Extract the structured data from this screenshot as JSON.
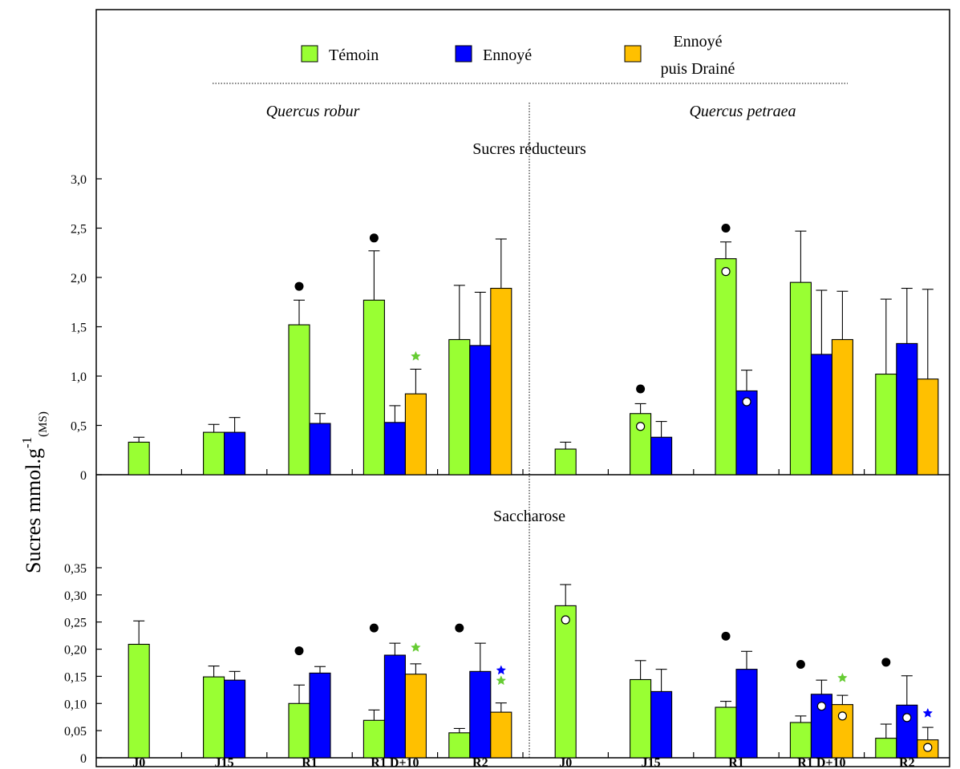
{
  "colors": {
    "temoin": "#99ff33",
    "ennoye": "#0000ff",
    "draine": "#ffc000",
    "axis": "#000000",
    "star_green": "#66cc33",
    "star_blue": "#0000ff"
  },
  "legend": {
    "temoin": "Témoin",
    "ennoye": "Ennoyé",
    "draine_line1": "Ennoyé",
    "draine_line2": "puis Drainé"
  },
  "species": {
    "left": "Quercus robur",
    "right": "Quercus petraea"
  },
  "y_axis_label": {
    "main": "Sucres mmol.g",
    "sup": "-1",
    "sub": "(MS)"
  },
  "chart_data": [
    {
      "type": "bar",
      "title": "Sucres réducteurs",
      "ylim": [
        0,
        3.0
      ],
      "yticks": [
        0,
        0.5,
        1.0,
        1.5,
        2.0,
        2.5,
        3.0
      ],
      "ytick_labels": [
        "0",
        "0,5",
        "1,0",
        "1,5",
        "2,0",
        "2,5",
        "3,0"
      ],
      "categories": [
        "J0",
        "J15",
        "R1",
        "R1 D+10",
        "R2",
        "J0",
        "J15",
        "R1",
        "R1 D+10",
        "R2"
      ],
      "series": [
        {
          "name": "Témoin",
          "values": [
            0.33,
            0.43,
            1.52,
            1.77,
            1.37,
            0.26,
            0.62,
            2.19,
            1.95,
            1.02
          ],
          "errors": [
            0.05,
            0.08,
            0.25,
            0.5,
            0.55,
            0.07,
            0.1,
            0.17,
            0.52,
            0.76
          ]
        },
        {
          "name": "Ennoyé",
          "values": [
            null,
            0.43,
            0.52,
            0.53,
            1.31,
            null,
            0.38,
            0.85,
            1.22,
            1.33
          ],
          "errors": [
            null,
            0.15,
            0.1,
            0.17,
            0.54,
            null,
            0.16,
            0.21,
            0.65,
            0.56
          ]
        },
        {
          "name": "Ennoyé puis Drainé",
          "values": [
            null,
            null,
            null,
            0.82,
            1.89,
            null,
            null,
            null,
            1.37,
            0.97
          ],
          "errors": [
            null,
            null,
            null,
            0.25,
            0.5,
            null,
            null,
            null,
            0.49,
            0.91
          ]
        }
      ],
      "markers": [
        {
          "type": "dot",
          "category": 2,
          "bar": 0,
          "y": 1.91
        },
        {
          "type": "dot",
          "category": 3,
          "bar": 0,
          "y": 2.4
        },
        {
          "type": "star",
          "category": 3,
          "bar": 2,
          "y": 1.2,
          "color": "#66cc33"
        },
        {
          "type": "dot",
          "category": 6,
          "bar": 0,
          "y": 0.87
        },
        {
          "type": "circle",
          "category": 6,
          "bar": 0,
          "y": 0.49
        },
        {
          "type": "dot",
          "category": 7,
          "bar": 0,
          "y": 2.5
        },
        {
          "type": "circle",
          "category": 7,
          "bar": 0,
          "y": 2.06
        },
        {
          "type": "circle",
          "category": 7,
          "bar": 1,
          "y": 0.74
        }
      ]
    },
    {
      "type": "bar",
      "title": "Saccharose",
      "ylim": [
        0,
        0.35
      ],
      "yticks": [
        0,
        0.05,
        0.1,
        0.15,
        0.2,
        0.25,
        0.3,
        0.35
      ],
      "ytick_labels": [
        "0",
        "0,05",
        "0,10",
        "0,15",
        "0,20",
        "0,25",
        "0,30",
        "0,35"
      ],
      "categories": [
        "J0",
        "J15",
        "R1",
        "R1 D+10",
        "R2",
        "J0",
        "J15",
        "R1",
        "R1 D+10",
        "R2"
      ],
      "series": [
        {
          "name": "Témoin",
          "values": [
            0.209,
            0.149,
            0.1,
            0.069,
            0.046,
            0.28,
            0.144,
            0.093,
            0.065,
            0.036
          ],
          "errors": [
            0.043,
            0.02,
            0.034,
            0.019,
            0.008,
            0.039,
            0.035,
            0.011,
            0.012,
            0.026
          ]
        },
        {
          "name": "Ennoyé",
          "values": [
            null,
            0.143,
            0.156,
            0.189,
            0.159,
            null,
            0.122,
            0.163,
            0.117,
            0.097
          ],
          "errors": [
            null,
            0.016,
            0.012,
            0.022,
            0.052,
            null,
            0.041,
            0.033,
            0.026,
            0.054
          ]
        },
        {
          "name": "Ennoyé puis Drainé",
          "values": [
            null,
            null,
            null,
            0.154,
            0.084,
            null,
            null,
            null,
            0.098,
            0.033
          ],
          "errors": [
            null,
            null,
            null,
            0.019,
            0.017,
            null,
            null,
            null,
            0.017,
            0.023
          ]
        }
      ],
      "markers": [
        {
          "type": "dot",
          "category": 2,
          "bar": 0,
          "y": 0.197
        },
        {
          "type": "dot",
          "category": 3,
          "bar": 0,
          "y": 0.239
        },
        {
          "type": "star",
          "category": 3,
          "bar": 2,
          "y": 0.203,
          "color": "#66cc33"
        },
        {
          "type": "dot",
          "category": 4,
          "bar": 0,
          "y": 0.239
        },
        {
          "type": "star",
          "category": 4,
          "bar": 2,
          "y": 0.161,
          "color": "#0000ff"
        },
        {
          "type": "star",
          "category": 4,
          "bar": 2,
          "y": 0.142,
          "color": "#66cc33"
        },
        {
          "type": "circle",
          "category": 5,
          "bar": 0,
          "y": 0.254
        },
        {
          "type": "dot",
          "category": 7,
          "bar": 0,
          "y": 0.224
        },
        {
          "type": "dot",
          "category": 8,
          "bar": 0,
          "y": 0.172
        },
        {
          "type": "star",
          "category": 8,
          "bar": 2,
          "y": 0.147,
          "color": "#66cc33"
        },
        {
          "type": "circle",
          "category": 8,
          "bar": 1,
          "y": 0.095
        },
        {
          "type": "circle",
          "category": 8,
          "bar": 2,
          "y": 0.077
        },
        {
          "type": "dot",
          "category": 9,
          "bar": 0,
          "y": 0.176
        },
        {
          "type": "star",
          "category": 9,
          "bar": 2,
          "y": 0.082,
          "color": "#0000ff"
        },
        {
          "type": "circle",
          "category": 9,
          "bar": 1,
          "y": 0.074
        },
        {
          "type": "circle",
          "category": 9,
          "bar": 2,
          "y": 0.019
        }
      ]
    }
  ]
}
